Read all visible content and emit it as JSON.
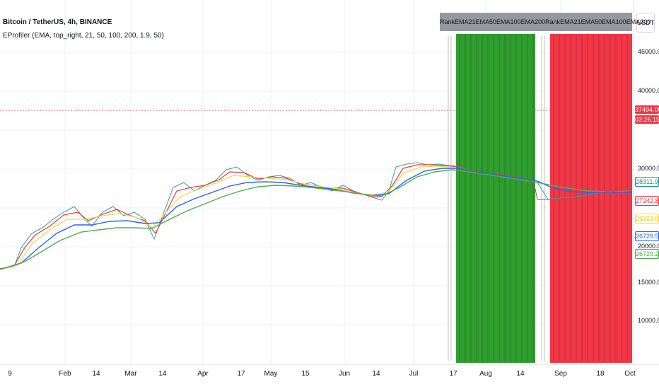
{
  "symbol_title": "Bitcoin / TetherUS, 4h, BINANCE",
  "indicator_label": "EProfiler (EMA, top_right, 21, 50, 100, 200, 1.9, 50)",
  "scale_button": "USDT",
  "table_headers": [
    "Rank",
    "EMA21",
    "EMA50",
    "EMA100",
    "EMA200",
    "Rank",
    "EMA21",
    "EMA50",
    "EMA100",
    "EMA200"
  ],
  "price_axis": [
    "45000.00",
    "40000.00",
    "30000.00",
    "20000.00",
    "15000.00",
    "10000.00"
  ],
  "price_labels": {
    "current_price": "37494.00",
    "countdown": "03:26:15",
    "ema_200": "28311.91",
    "ema_21": "27242.86",
    "ema_50": "26923.03",
    "ema_100": "26729.52",
    "ema_200b": "26729.21"
  },
  "date_axis": [
    "9",
    "Feb",
    "14",
    "Mar",
    "14",
    "Apr",
    "17",
    "May",
    "15",
    "Jun",
    "14",
    "Jul",
    "17",
    "Aug",
    "14",
    "Sep",
    "18",
    "Oct"
  ],
  "colors": {
    "green_zone": "#2e9e2e",
    "red_zone": "#f23645",
    "price_line": "#f23645",
    "ema21": "#f23645",
    "ema50": "#f5d742",
    "ema100": "#2962ff",
    "ema200": "#4caf50",
    "header_bg": "#9598a1"
  }
}
